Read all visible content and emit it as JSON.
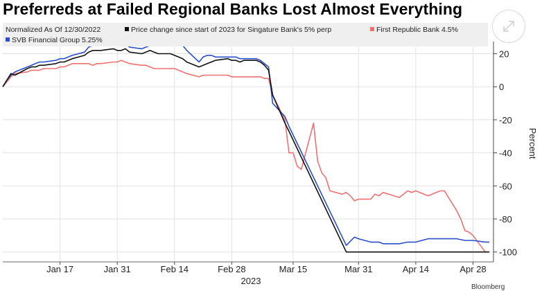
{
  "title": "Preferreds at Failed Regional Banks Lost Almost Everything",
  "legend": {
    "normalized_note": "Normalized As Of 12/30/2022",
    "items": [
      {
        "label": "Price change since start of 2023 for Singature Bank's 5% perp",
        "color": "#111111"
      },
      {
        "label": "First Republic Bank 4.5%",
        "color": "#f07070"
      },
      {
        "label": "SVB Financial Group 5.25%",
        "color": "#2a4dc8"
      }
    ]
  },
  "footer": {
    "source_left": "",
    "brand": "Bloomberg"
  },
  "chart_data": {
    "type": "line",
    "title": "Preferreds at Failed Regional Banks Lost Almost Everything",
    "subtitle": "Normalized As Of 12/30/2022",
    "ylabel": "Percent",
    "xlabel": "2023",
    "x_tick_labels": [
      "Jan 17",
      "Jan 31",
      "Feb 14",
      "Feb 28",
      "Mar 15",
      "Mar 31",
      "Apr 14",
      "Apr 28"
    ],
    "y_ticks": [
      20,
      0,
      -20,
      -40,
      -60,
      -80,
      -100
    ],
    "ylim": [
      -106,
      24
    ],
    "grid": true,
    "legend_position": "top",
    "y_axis_side": "right",
    "series": [
      {
        "name": "Price change since start of 2023 for Singature Bank's 5% perp",
        "color": "#111111",
        "points": [
          [
            "2023-01-03",
            0
          ],
          [
            "2023-01-04",
            4
          ],
          [
            "2023-01-05",
            8
          ],
          [
            "2023-01-06",
            7
          ],
          [
            "2023-01-09",
            11
          ],
          [
            "2023-01-10",
            12
          ],
          [
            "2023-01-11",
            12
          ],
          [
            "2023-01-12",
            13
          ],
          [
            "2023-01-13",
            13
          ],
          [
            "2023-01-16",
            14
          ],
          [
            "2023-01-17",
            15
          ],
          [
            "2023-01-18",
            15
          ],
          [
            "2023-01-19",
            16
          ],
          [
            "2023-01-20",
            17
          ],
          [
            "2023-01-23",
            19
          ],
          [
            "2023-01-24",
            21
          ],
          [
            "2023-01-25",
            22
          ],
          [
            "2023-01-26",
            22
          ],
          [
            "2023-01-27",
            22
          ],
          [
            "2023-01-30",
            23
          ],
          [
            "2023-01-31",
            22
          ],
          [
            "2023-02-01",
            22
          ],
          [
            "2023-02-02",
            23
          ],
          [
            "2023-02-03",
            21
          ],
          [
            "2023-02-06",
            20
          ],
          [
            "2023-02-07",
            21
          ],
          [
            "2023-02-08",
            22
          ],
          [
            "2023-02-09",
            21
          ],
          [
            "2023-02-10",
            20
          ],
          [
            "2023-02-13",
            20
          ],
          [
            "2023-02-14",
            19
          ],
          [
            "2023-02-15",
            18
          ],
          [
            "2023-02-16",
            17
          ],
          [
            "2023-02-17",
            15
          ],
          [
            "2023-02-20",
            12
          ],
          [
            "2023-02-21",
            13
          ],
          [
            "2023-02-22",
            14
          ],
          [
            "2023-02-23",
            15
          ],
          [
            "2023-02-24",
            16
          ],
          [
            "2023-02-27",
            17
          ],
          [
            "2023-02-28",
            16
          ],
          [
            "2023-03-01",
            16
          ],
          [
            "2023-03-02",
            15
          ],
          [
            "2023-03-03",
            16
          ],
          [
            "2023-03-06",
            16
          ],
          [
            "2023-03-07",
            15
          ],
          [
            "2023-03-08",
            13
          ],
          [
            "2023-03-09",
            10
          ],
          [
            "2023-03-10",
            -5
          ],
          [
            "2023-03-13",
            -22
          ],
          [
            "2023-03-14",
            -27
          ],
          [
            "2023-03-28",
            -100
          ],
          [
            "2023-04-03",
            -100
          ],
          [
            "2023-04-10",
            -100
          ],
          [
            "2023-04-17",
            -100
          ],
          [
            "2023-04-24",
            -100
          ],
          [
            "2023-05-02",
            -100
          ]
        ]
      },
      {
        "name": "First Republic Bank 4.5%",
        "color": "#f07070",
        "points": [
          [
            "2023-01-03",
            0
          ],
          [
            "2023-01-04",
            3
          ],
          [
            "2023-01-05",
            6
          ],
          [
            "2023-01-06",
            8
          ],
          [
            "2023-01-09",
            9
          ],
          [
            "2023-01-10",
            10
          ],
          [
            "2023-01-11",
            10
          ],
          [
            "2023-01-12",
            10
          ],
          [
            "2023-01-13",
            11
          ],
          [
            "2023-01-16",
            11
          ],
          [
            "2023-01-17",
            12
          ],
          [
            "2023-01-18",
            12
          ],
          [
            "2023-01-19",
            13
          ],
          [
            "2023-01-20",
            14
          ],
          [
            "2023-01-23",
            14
          ],
          [
            "2023-01-24",
            14
          ],
          [
            "2023-01-25",
            13
          ],
          [
            "2023-01-26",
            14
          ],
          [
            "2023-01-27",
            14
          ],
          [
            "2023-01-30",
            15
          ],
          [
            "2023-01-31",
            15
          ],
          [
            "2023-02-01",
            16
          ],
          [
            "2023-02-02",
            15
          ],
          [
            "2023-02-03",
            14
          ],
          [
            "2023-02-06",
            13
          ],
          [
            "2023-02-07",
            13
          ],
          [
            "2023-02-08",
            12
          ],
          [
            "2023-02-09",
            11
          ],
          [
            "2023-02-10",
            11
          ],
          [
            "2023-02-13",
            11
          ],
          [
            "2023-02-14",
            11
          ],
          [
            "2023-02-15",
            10
          ],
          [
            "2023-02-16",
            9
          ],
          [
            "2023-02-17",
            8
          ],
          [
            "2023-02-20",
            6
          ],
          [
            "2023-02-21",
            7
          ],
          [
            "2023-02-22",
            7
          ],
          [
            "2023-02-23",
            7
          ],
          [
            "2023-02-24",
            7
          ],
          [
            "2023-02-27",
            7
          ],
          [
            "2023-02-28",
            6
          ],
          [
            "2023-03-01",
            6
          ],
          [
            "2023-03-02",
            6
          ],
          [
            "2023-03-03",
            6
          ],
          [
            "2023-03-06",
            6
          ],
          [
            "2023-03-07",
            6
          ],
          [
            "2023-03-08",
            5
          ],
          [
            "2023-03-09",
            5
          ],
          [
            "2023-03-10",
            -5
          ],
          [
            "2023-03-13",
            -20
          ],
          [
            "2023-03-14",
            -40
          ],
          [
            "2023-03-15",
            -40
          ],
          [
            "2023-03-16",
            -48
          ],
          [
            "2023-03-17",
            -50
          ],
          [
            "2023-03-20",
            -22
          ],
          [
            "2023-03-21",
            -45
          ],
          [
            "2023-03-22",
            -52
          ],
          [
            "2023-03-23",
            -55
          ],
          [
            "2023-03-24",
            -63
          ],
          [
            "2023-03-27",
            -65
          ],
          [
            "2023-03-28",
            -64
          ],
          [
            "2023-03-29",
            -66
          ],
          [
            "2023-03-30",
            -69
          ],
          [
            "2023-03-31",
            -68
          ],
          [
            "2023-04-03",
            -68
          ],
          [
            "2023-04-04",
            -65
          ],
          [
            "2023-04-05",
            -66
          ],
          [
            "2023-04-06",
            -64
          ],
          [
            "2023-04-10",
            -67
          ],
          [
            "2023-04-11",
            -65
          ],
          [
            "2023-04-12",
            -63
          ],
          [
            "2023-04-13",
            -64
          ],
          [
            "2023-04-14",
            -63
          ],
          [
            "2023-04-17",
            -66
          ],
          [
            "2023-04-18",
            -65
          ],
          [
            "2023-04-19",
            -64
          ],
          [
            "2023-04-20",
            -63
          ],
          [
            "2023-04-21",
            -63
          ],
          [
            "2023-04-24",
            -75
          ],
          [
            "2023-04-25",
            -80
          ],
          [
            "2023-04-26",
            -87
          ],
          [
            "2023-04-27",
            -88
          ],
          [
            "2023-04-28",
            -90
          ],
          [
            "2023-05-01",
            -100
          ],
          [
            "2023-05-02",
            -100
          ]
        ]
      },
      {
        "name": "SVB Financial Group 5.25%",
        "color": "#2a4dc8",
        "points": [
          [
            "2023-01-03",
            0
          ],
          [
            "2023-01-04",
            4
          ],
          [
            "2023-01-05",
            7
          ],
          [
            "2023-01-06",
            9
          ],
          [
            "2023-01-09",
            12
          ],
          [
            "2023-01-10",
            13
          ],
          [
            "2023-01-11",
            14
          ],
          [
            "2023-01-12",
            15
          ],
          [
            "2023-01-13",
            15
          ],
          [
            "2023-01-16",
            16
          ],
          [
            "2023-01-17",
            17
          ],
          [
            "2023-01-18",
            17
          ],
          [
            "2023-01-19",
            18
          ],
          [
            "2023-01-20",
            19
          ],
          [
            "2023-01-23",
            21
          ],
          [
            "2023-01-24",
            24
          ],
          [
            "2023-01-25",
            25
          ],
          [
            "2023-01-26",
            25
          ],
          [
            "2023-01-27",
            25
          ],
          [
            "2023-01-30",
            26
          ],
          [
            "2023-01-31",
            25
          ],
          [
            "2023-02-01",
            25
          ],
          [
            "2023-02-02",
            26
          ],
          [
            "2023-02-03",
            24
          ],
          [
            "2023-02-06",
            23
          ],
          [
            "2023-02-07",
            24
          ],
          [
            "2023-02-08",
            25
          ],
          [
            "2023-02-09",
            26
          ],
          [
            "2023-02-10",
            26
          ],
          [
            "2023-02-13",
            26
          ],
          [
            "2023-02-14",
            25
          ],
          [
            "2023-02-15",
            25
          ],
          [
            "2023-02-16",
            25
          ],
          [
            "2023-02-17",
            22
          ],
          [
            "2023-02-20",
            15
          ],
          [
            "2023-02-21",
            18
          ],
          [
            "2023-02-22",
            19
          ],
          [
            "2023-02-23",
            19
          ],
          [
            "2023-02-24",
            18
          ],
          [
            "2023-02-27",
            18
          ],
          [
            "2023-02-28",
            18
          ],
          [
            "2023-03-01",
            18
          ],
          [
            "2023-03-02",
            17
          ],
          [
            "2023-03-03",
            17
          ],
          [
            "2023-03-06",
            17
          ],
          [
            "2023-03-07",
            16
          ],
          [
            "2023-03-08",
            14
          ],
          [
            "2023-03-09",
            12
          ],
          [
            "2023-03-10",
            -10
          ],
          [
            "2023-03-13",
            -18
          ],
          [
            "2023-03-14",
            -24
          ],
          [
            "2023-03-28",
            -96
          ],
          [
            "2023-03-30",
            -91
          ],
          [
            "2023-03-31",
            -92
          ],
          [
            "2023-04-03",
            -94
          ],
          [
            "2023-04-05",
            -94
          ],
          [
            "2023-04-06",
            -95
          ],
          [
            "2023-04-10",
            -95
          ],
          [
            "2023-04-12",
            -94
          ],
          [
            "2023-04-14",
            -94
          ],
          [
            "2023-04-17",
            -92
          ],
          [
            "2023-04-19",
            -92
          ],
          [
            "2023-04-21",
            -92
          ],
          [
            "2023-04-24",
            -92
          ],
          [
            "2023-04-26",
            -93
          ],
          [
            "2023-04-28",
            -93
          ],
          [
            "2023-05-01",
            -94
          ],
          [
            "2023-05-02",
            -94
          ]
        ]
      }
    ]
  }
}
